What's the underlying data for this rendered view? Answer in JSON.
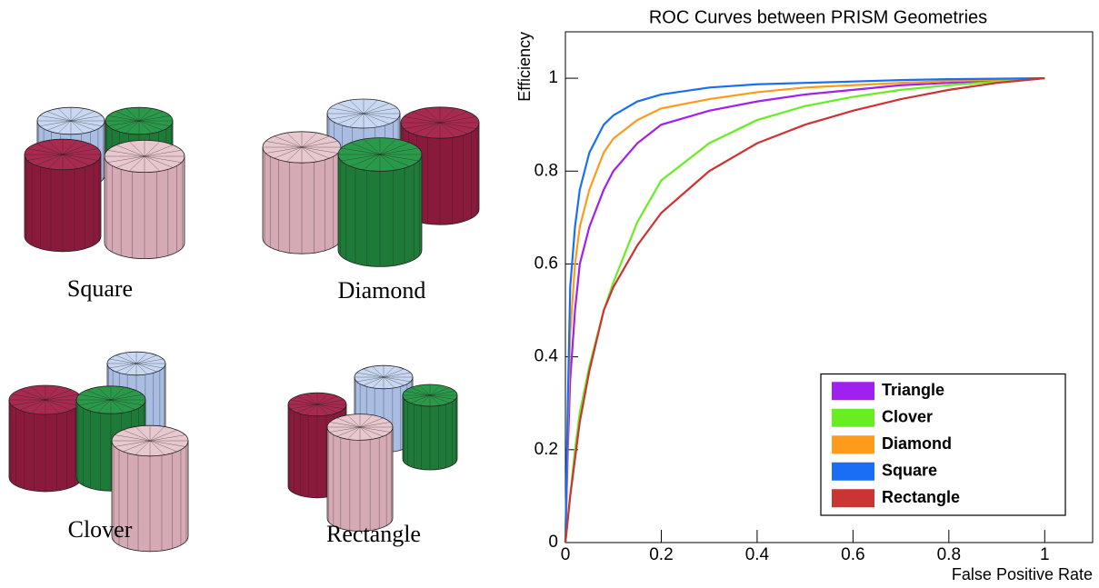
{
  "illustration": {
    "labels": [
      "Square",
      "Diamond",
      "Clover",
      "Rectangle"
    ]
  },
  "chart_data": {
    "type": "line",
    "title": "ROC Curves between PRISM Geometries",
    "xlabel": "False Positive Rate",
    "ylabel": "Efficiency",
    "x": [
      0,
      0.005,
      0.01,
      0.02,
      0.03,
      0.05,
      0.08,
      0.1,
      0.15,
      0.2,
      0.3,
      0.4,
      0.5,
      0.6,
      0.7,
      0.8,
      0.9,
      1
    ],
    "series": [
      {
        "name": "Triangle",
        "color": "#a020f0",
        "values": [
          0,
          0.2,
          0.35,
          0.5,
          0.6,
          0.68,
          0.76,
          0.8,
          0.86,
          0.9,
          0.93,
          0.95,
          0.965,
          0.975,
          0.985,
          0.99,
          0.995,
          1
        ]
      },
      {
        "name": "Clover",
        "color": "#66ee22",
        "values": [
          0,
          0.05,
          0.1,
          0.2,
          0.28,
          0.38,
          0.5,
          0.56,
          0.69,
          0.78,
          0.86,
          0.91,
          0.94,
          0.96,
          0.975,
          0.985,
          0.993,
          1
        ]
      },
      {
        "name": "Diamond",
        "color": "#ff9a1a",
        "values": [
          0,
          0.25,
          0.45,
          0.6,
          0.68,
          0.76,
          0.84,
          0.87,
          0.91,
          0.935,
          0.955,
          0.97,
          0.98,
          0.985,
          0.99,
          0.994,
          0.997,
          1
        ]
      },
      {
        "name": "Square",
        "color": "#1a6ef5",
        "values": [
          0,
          0.3,
          0.55,
          0.68,
          0.76,
          0.84,
          0.9,
          0.92,
          0.95,
          0.965,
          0.98,
          0.987,
          0.99,
          0.993,
          0.996,
          0.998,
          0.999,
          1
        ]
      },
      {
        "name": "Rectangle",
        "color": "#cc3333",
        "values": [
          0,
          0.05,
          0.1,
          0.18,
          0.26,
          0.37,
          0.5,
          0.55,
          0.64,
          0.71,
          0.8,
          0.86,
          0.9,
          0.93,
          0.955,
          0.975,
          0.99,
          1
        ]
      }
    ],
    "xlim": [
      0,
      1.1
    ],
    "ylim": [
      0,
      1.1
    ],
    "xticks": [
      0,
      0.2,
      0.4,
      0.6,
      0.8,
      1
    ],
    "yticks": [
      0,
      0.2,
      0.4,
      0.6,
      0.8,
      1
    ],
    "grid": false,
    "legend": "lower right"
  }
}
